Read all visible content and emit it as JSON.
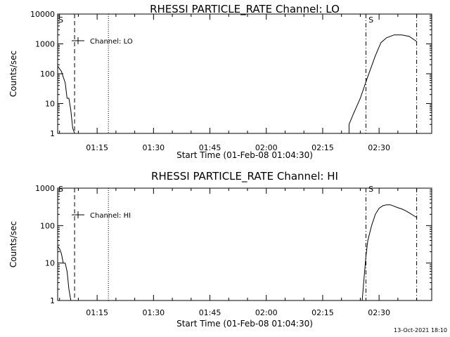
{
  "chart_data": [
    {
      "type": "line",
      "title": "RHESSI PARTICLE_RATE Channel: LO",
      "xlabel": "Start Time (01-Feb-08 01:04:30)",
      "ylabel": "Counts/sec",
      "yscale": "log",
      "ylim": [
        1,
        10000
      ],
      "xlim": [
        "01:04:30",
        "02:44:00"
      ],
      "x_ticks": [
        "01:15",
        "01:30",
        "01:45",
        "02:00",
        "02:15",
        "02:30"
      ],
      "y_ticks": [
        "1",
        "10",
        "100",
        "1000",
        "10000"
      ],
      "flag_label": "S",
      "flag_times": [
        "01:04:30",
        "02:27:00"
      ],
      "legend": {
        "label": "Channel: LO",
        "placement": "top-left"
      },
      "vlines": [
        {
          "time": "01:09:00",
          "style": "dashed"
        },
        {
          "time": "01:18:00",
          "style": "dotted"
        },
        {
          "time": "02:26:30",
          "style": "dash-dot"
        },
        {
          "time": "02:40:00",
          "style": "dash-dot"
        }
      ],
      "series": [
        {
          "segments": [
            {
              "x": [
                "01:04:30",
                "01:05:30",
                "01:06:30",
                "01:07:00",
                "01:07:30",
                "01:08:00",
                "01:08:30",
                "01:09:00"
              ],
              "y": [
                180,
                120,
                50,
                15,
                15,
                6,
                1.5,
                1
              ]
            },
            {
              "x": [
                "02:21:00",
                "02:22:00",
                "02:22:00",
                "02:23:00",
                "02:25:00",
                "02:27:00",
                "02:29:00",
                "02:30:30",
                "02:32:00",
                "02:34:00",
                "02:36:00",
                "02:38:00",
                "02:40:00"
              ],
              "y": [
                1,
                1,
                2,
                4,
                15,
                80,
                400,
                1100,
                1600,
                2000,
                2000,
                1800,
                1200
              ]
            }
          ]
        }
      ]
    },
    {
      "type": "line",
      "title": "RHESSI PARTICLE_RATE Channel: HI",
      "xlabel": "Start Time (01-Feb-08 01:04:30)",
      "ylabel": "Counts/sec",
      "yscale": "log",
      "ylim": [
        1,
        1000
      ],
      "xlim": [
        "01:04:30",
        "02:44:00"
      ],
      "x_ticks": [
        "01:15",
        "01:30",
        "01:45",
        "02:00",
        "02:15",
        "02:30"
      ],
      "y_ticks": [
        "1",
        "10",
        "100",
        "1000"
      ],
      "flag_label": "S",
      "flag_times": [
        "01:04:30",
        "02:27:00"
      ],
      "legend": {
        "label": "Channel: HI",
        "placement": "top-left"
      },
      "vlines": [
        {
          "time": "01:09:00",
          "style": "dashed"
        },
        {
          "time": "01:18:00",
          "style": "dotted"
        },
        {
          "time": "02:26:30",
          "style": "dash-dot"
        },
        {
          "time": "02:40:00",
          "style": "dash-dot"
        }
      ],
      "series": [
        {
          "segments": [
            {
              "x": [
                "01:04:30",
                "01:05:00",
                "01:05:30",
                "01:06:00",
                "01:06:30",
                "01:07:00",
                "01:07:30",
                "01:08:00"
              ],
              "y": [
                28,
                24,
                18,
                10,
                10,
                6,
                2,
                1
              ]
            },
            {
              "x": [
                "02:25:30",
                "02:26:00",
                "02:26:30",
                "02:27:00",
                "02:28:00",
                "02:29:00",
                "02:30:00",
                "02:31:00",
                "02:32:00",
                "02:33:00",
                "02:34:00",
                "02:35:00",
                "02:36:00",
                "02:37:00",
                "02:38:00",
                "02:39:00",
                "02:40:00"
              ],
              "y": [
                1,
                4,
                15,
                40,
                100,
                200,
                290,
                340,
                360,
                360,
                330,
                300,
                280,
                250,
                220,
                190,
                165
              ]
            }
          ]
        }
      ]
    }
  ],
  "timestamp": "13-Oct-2021 18:10"
}
